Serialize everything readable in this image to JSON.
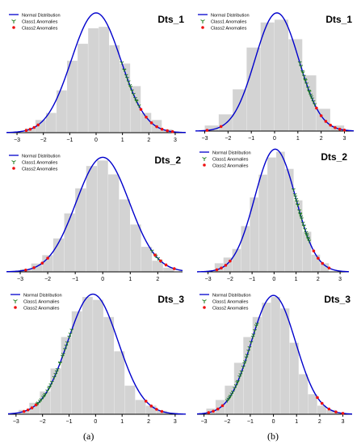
{
  "figure_labels": [
    "(a)",
    "(b)"
  ],
  "colors": {
    "curve": "#0000cc",
    "histogram": "#d3d3d3",
    "class1": "#1a7a1a",
    "class2": "#ee1111",
    "axis": "#000000"
  },
  "legend": {
    "curve": "Normal Distribution",
    "class1": "Class1  Anomalies",
    "class2": "Class2  Anomalies"
  },
  "chart_data": [
    {
      "type": "bar+line+scatter",
      "column": "a",
      "row": 1,
      "title": "Dts_1",
      "x_ticks": [
        -3,
        -2,
        -1,
        0,
        1,
        2,
        3
      ],
      "xlim": [
        -3.4,
        3.4
      ],
      "ylim": [
        0,
        0.43
      ],
      "grid": false,
      "legend_position": "top-left",
      "histogram": {
        "bin_edges": [
          -2.7,
          -2.3,
          -1.9,
          -1.5,
          -1.1,
          -0.7,
          -0.3,
          0.1,
          0.5,
          0.9,
          1.3,
          1.7,
          2.1,
          2.5,
          2.9
        ],
        "heights": [
          0.015,
          0.045,
          0.07,
          0.15,
          0.255,
          0.315,
          0.37,
          0.375,
          0.31,
          0.245,
          0.165,
          0.07,
          0.045,
          0.012
        ]
      },
      "normal_curve": {
        "mean": 0.0,
        "std": 0.94
      },
      "class1_anomalies": {
        "x_range": [
          1.0,
          1.6
        ],
        "count": 14
      },
      "class2_anomalies": {
        "x_values": [
          -2.65,
          -2.5,
          -2.35,
          -2.2,
          1.7,
          1.9,
          2.1,
          2.3,
          2.5,
          2.7,
          2.9
        ]
      }
    },
    {
      "type": "bar+line+scatter",
      "column": "a",
      "row": 2,
      "title": "Dts_2",
      "x_ticks": [
        -3,
        -2,
        -1,
        0,
        1,
        2
      ],
      "xlim": [
        -3.5,
        2.9
      ],
      "ylim": [
        0,
        0.43
      ],
      "grid": false,
      "legend_position": "top-left",
      "histogram": {
        "bin_edges": [
          -3.0,
          -2.6,
          -2.2,
          -1.8,
          -1.4,
          -1.0,
          -0.6,
          -0.2,
          0.2,
          0.6,
          1.0,
          1.4,
          1.8,
          2.2,
          2.6
        ],
        "heights": [
          0.01,
          0.03,
          0.06,
          0.12,
          0.21,
          0.3,
          0.38,
          0.4,
          0.35,
          0.26,
          0.17,
          0.09,
          0.04,
          0.015
        ]
      },
      "normal_curve": {
        "mean": 0.0,
        "std": 0.97
      },
      "class1_anomalies": {
        "x_range": [
          1.8,
          2.1
        ],
        "count": 5
      },
      "class2_anomalies": {
        "x_values": [
          -2.8,
          -2.5,
          -2.2,
          -2.0,
          1.9,
          2.1,
          2.3,
          2.6
        ]
      }
    },
    {
      "type": "bar+line+scatter",
      "column": "a",
      "row": 3,
      "title": "Dts_3",
      "x_ticks": [
        -3,
        -2,
        -1,
        0,
        1,
        2,
        3
      ],
      "xlim": [
        -3.3,
        3.4
      ],
      "ylim": [
        0,
        0.43
      ],
      "grid": false,
      "legend_position": "top-left",
      "histogram": {
        "bin_edges": [
          -2.9,
          -2.5,
          -2.1,
          -1.7,
          -1.3,
          -0.9,
          -0.5,
          -0.1,
          0.3,
          0.7,
          1.1,
          1.5,
          1.9,
          2.3,
          2.7,
          3.1
        ],
        "heights": [
          0.015,
          0.04,
          0.08,
          0.16,
          0.27,
          0.36,
          0.41,
          0.4,
          0.34,
          0.22,
          0.1,
          0.05,
          0.03,
          0.012,
          0.005
        ]
      },
      "normal_curve": {
        "mean": -0.1,
        "std": 0.95
      },
      "class1_anomalies": {
        "x_range": [
          -2.2,
          -0.9
        ],
        "count": 26
      },
      "class2_anomalies": {
        "x_values": [
          -2.7,
          -2.55,
          -2.4,
          -2.25,
          1.9,
          2.1,
          2.3,
          2.5
        ]
      }
    },
    {
      "type": "bar+line+scatter",
      "column": "b",
      "row": 1,
      "title": "Dts_1",
      "x_ticks": [
        -3,
        -2,
        -1,
        0,
        1,
        2,
        3
      ],
      "xlim": [
        -3.4,
        3.4
      ],
      "ylim": [
        0,
        0.43
      ],
      "grid": false,
      "legend_position": "top-left",
      "histogram": {
        "bin_edges": [
          -3.0,
          -2.4,
          -1.8,
          -1.2,
          -0.6,
          0.0,
          0.6,
          1.2,
          1.8,
          2.4,
          3.0
        ],
        "heights": [
          0.02,
          0.06,
          0.15,
          0.3,
          0.39,
          0.4,
          0.33,
          0.2,
          0.08,
          0.02
        ]
      },
      "normal_curve": {
        "mean": 0.1,
        "std": 0.94
      },
      "class1_anomalies": {
        "x_range": [
          1.1,
          1.7
        ],
        "count": 16
      },
      "class2_anomalies": {
        "x_values": [
          -2.9,
          -2.3,
          1.8,
          2.0,
          2.2,
          2.4,
          2.6,
          2.8,
          3.0
        ]
      }
    },
    {
      "type": "bar+line+scatter",
      "column": "b",
      "row": 2,
      "title": "Dts_2",
      "x_ticks": [
        -3,
        -2,
        -1,
        0,
        1,
        2,
        3
      ],
      "xlim": [
        -3.5,
        3.4
      ],
      "ylim": [
        0,
        0.43
      ],
      "grid": false,
      "legend_position": "top-left",
      "histogram": {
        "bin_edges": [
          -2.7,
          -2.3,
          -1.9,
          -1.5,
          -1.1,
          -0.7,
          -0.3,
          0.1,
          0.5,
          0.9,
          1.3,
          1.7,
          2.1,
          2.5
        ],
        "heights": [
          0.03,
          0.05,
          0.08,
          0.16,
          0.26,
          0.34,
          0.4,
          0.42,
          0.36,
          0.25,
          0.14,
          0.06,
          0.03
        ]
      },
      "normal_curve": {
        "mean": 0.05,
        "std": 0.93
      },
      "class1_anomalies": {
        "x_range": [
          0.9,
          1.6
        ],
        "count": 22
      },
      "class2_anomalies": {
        "x_values": [
          -2.6,
          -2.4,
          -2.2,
          -2.0,
          1.8,
          2.0,
          2.2,
          2.5
        ]
      }
    },
    {
      "type": "bar+line+scatter",
      "column": "b",
      "row": 3,
      "title": "Dts_3",
      "x_ticks": [
        -3,
        -2,
        -1,
        0,
        1,
        2,
        3
      ],
      "xlim": [
        -3.3,
        3.4
      ],
      "ylim": [
        0,
        0.43
      ],
      "grid": false,
      "legend_position": "top-left",
      "histogram": {
        "bin_edges": [
          -2.9,
          -2.5,
          -2.1,
          -1.7,
          -1.3,
          -0.9,
          -0.5,
          -0.1,
          0.3,
          0.7,
          1.1,
          1.5,
          1.9,
          2.3,
          2.7,
          3.1
        ],
        "heights": [
          0.02,
          0.05,
          0.1,
          0.18,
          0.27,
          0.34,
          0.39,
          0.41,
          0.37,
          0.25,
          0.14,
          0.07,
          0.03,
          0.015,
          0.005
        ]
      },
      "normal_curve": {
        "mean": 0.0,
        "std": 0.96
      },
      "class1_anomalies": {
        "x_range": [
          -2.0,
          -0.7
        ],
        "count": 26
      },
      "class2_anomalies": {
        "x_values": [
          -2.8,
          -2.6,
          -2.4,
          -2.2,
          1.9,
          2.1,
          2.4,
          2.7,
          3.0
        ]
      }
    }
  ]
}
